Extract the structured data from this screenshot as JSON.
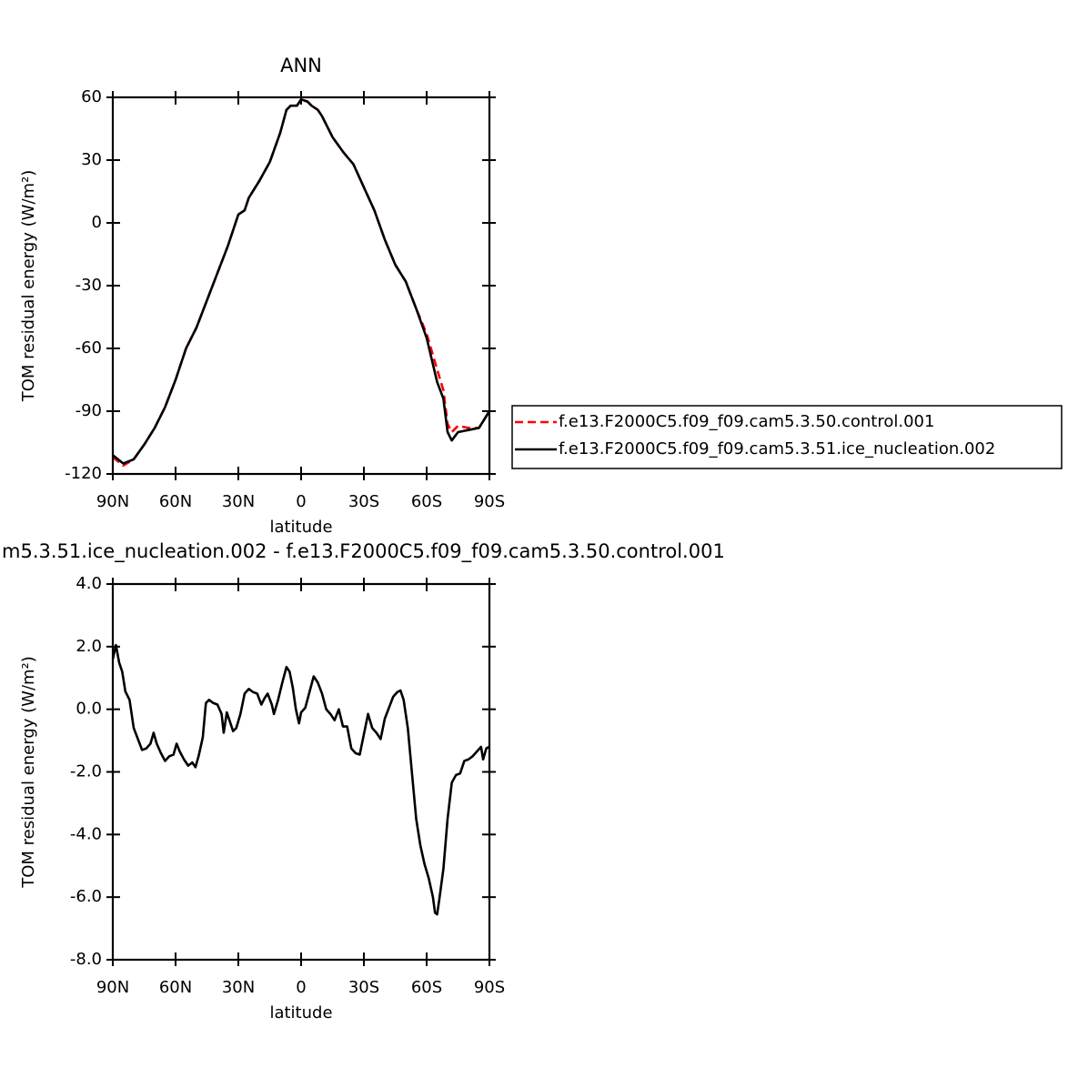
{
  "chart_data": [
    {
      "type": "line",
      "title": "ANN",
      "xlabel": "latitude",
      "ylabel": "TOM residual energy (W/m²)",
      "x": [
        90,
        85,
        80,
        75,
        70,
        65,
        60,
        55,
        50,
        45,
        40,
        35,
        30,
        27,
        25,
        20,
        15,
        10,
        7,
        5,
        2,
        0,
        -3,
        -5,
        -8,
        -10,
        -15,
        -20,
        -25,
        -30,
        -35,
        -40,
        -45,
        -50,
        -55,
        -60,
        -65,
        -68,
        -70,
        -72,
        -75,
        -80,
        -85,
        -90
      ],
      "series": [
        {
          "name": "f.e13.F2000C5.f09_f09.cam5.3.50.control.001",
          "color": "#ff0000",
          "linestyle": "dashed",
          "values": [
            -112,
            -116,
            -113,
            -106,
            -98,
            -88,
            -75,
            -60,
            -50,
            -37,
            -24,
            -11,
            4,
            6,
            12,
            20,
            29,
            43,
            54,
            56,
            56,
            59,
            58,
            56,
            54,
            51,
            41,
            34,
            28,
            17,
            6,
            -8,
            -20,
            -28,
            -41,
            -53,
            -70,
            -80,
            -96,
            -100,
            -97,
            -98,
            -98,
            -90
          ]
        },
        {
          "name": "f.e13.F2000C5.f09_f09.cam5.3.51.ice_nucleation.002",
          "color": "#000000",
          "linestyle": "solid",
          "values": [
            -111,
            -115,
            -113,
            -106,
            -98,
            -88,
            -75,
            -60,
            -50,
            -37,
            -24,
            -11,
            4,
            6,
            12,
            20,
            29,
            43,
            54,
            56,
            56,
            59,
            58,
            56,
            54,
            51,
            41,
            34,
            28,
            17,
            6,
            -8,
            -20,
            -28,
            -41,
            -55,
            -76,
            -84,
            -100,
            -104,
            -100,
            -99,
            -98,
            -90
          ]
        }
      ],
      "xlim": [
        90,
        -90
      ],
      "xticks": [
        {
          "value": 90,
          "label": "90N"
        },
        {
          "value": 60,
          "label": "60N"
        },
        {
          "value": 30,
          "label": "30N"
        },
        0,
        {
          "value": -30,
          "label": "30S"
        },
        {
          "value": -60,
          "label": "60S"
        },
        {
          "value": -90,
          "label": "90S"
        }
      ],
      "ylim": [
        -120,
        60
      ],
      "yticks": [
        -120,
        -90,
        -60,
        -30,
        0,
        30,
        60
      ],
      "legend": true
    },
    {
      "type": "line",
      "title": "m5.3.51.ice_nucleation.002 - f.e13.F2000C5.f09_f09.cam5.3.50.control.001",
      "xlabel": "latitude",
      "ylabel": "TOM residual energy (W/m²)",
      "x": [
        90,
        88.5,
        87,
        85.5,
        84,
        82,
        80,
        78,
        76,
        74,
        72,
        70.5,
        69,
        67,
        65,
        63,
        61,
        59.5,
        58,
        56,
        54,
        52,
        50.5,
        49,
        47,
        45.5,
        44,
        42,
        40,
        38,
        37,
        35.5,
        34,
        32.5,
        31,
        29,
        27,
        25,
        23,
        21,
        19,
        17.5,
        16,
        14,
        13,
        11,
        9,
        7,
        5.5,
        4,
        2.5,
        1,
        0,
        -2,
        -4,
        -6,
        -8,
        -10,
        -12,
        -14,
        -16,
        -18,
        -20,
        -22,
        -24,
        -26,
        -28,
        -30,
        -32,
        -34,
        -36,
        -38,
        -40,
        -42,
        -44,
        -46,
        -47.5,
        -49,
        -51,
        -53,
        -55,
        -57,
        -59,
        -61,
        -63,
        -64,
        -65,
        -66,
        -68,
        -70,
        -72,
        -74,
        -76,
        -78,
        -80,
        -82,
        -84,
        -86,
        -87,
        -88.5,
        -90
      ],
      "values": [
        1.6,
        2.05,
        1.5,
        1.2,
        0.57,
        0.3,
        -0.6,
        -0.95,
        -1.3,
        -1.25,
        -1.1,
        -0.75,
        -1.1,
        -1.4,
        -1.65,
        -1.5,
        -1.45,
        -1.1,
        -1.35,
        -1.6,
        -1.8,
        -1.7,
        -1.85,
        -1.5,
        -0.9,
        0.2,
        0.3,
        0.2,
        0.15,
        -0.15,
        -0.75,
        -0.1,
        -0.4,
        -0.7,
        -0.6,
        -0.15,
        0.5,
        0.65,
        0.55,
        0.5,
        0.15,
        0.35,
        0.5,
        0.15,
        -0.15,
        0.3,
        0.85,
        1.35,
        1.2,
        0.7,
        0,
        -0.45,
        -0.1,
        0.05,
        0.55,
        1.05,
        0.85,
        0.5,
        0,
        -0.15,
        -0.35,
        0,
        -0.55,
        -0.55,
        -1.25,
        -1.4,
        -1.45,
        -0.8,
        -0.15,
        -0.6,
        -0.75,
        -0.95,
        -0.3,
        0.05,
        0.4,
        0.55,
        0.6,
        0.3,
        -0.6,
        -2.05,
        -3.5,
        -4.35,
        -4.95,
        -5.4,
        -6.0,
        -6.5,
        -6.55,
        -6.1,
        -5.1,
        -3.5,
        -2.35,
        -2.1,
        -2.05,
        -1.65,
        -1.6,
        -1.5,
        -1.35,
        -1.2,
        -1.6,
        -1.25,
        -1.2
      ],
      "color": "#000000",
      "xlim": [
        90,
        -90
      ],
      "xticks": [
        {
          "value": 90,
          "label": "90N"
        },
        {
          "value": 60,
          "label": "60N"
        },
        {
          "value": 30,
          "label": "30N"
        },
        0,
        {
          "value": -30,
          "label": "30S"
        },
        {
          "value": -60,
          "label": "60S"
        },
        {
          "value": -90,
          "label": "90S"
        }
      ],
      "ylim": [
        -8,
        4
      ],
      "yticks": [
        {
          "value": -8,
          "label": "-8.0"
        },
        {
          "value": -6,
          "label": "-6.0"
        },
        {
          "value": -4,
          "label": "-4.0"
        },
        {
          "value": -2,
          "label": "-2.0"
        },
        {
          "value": 0,
          "label": "0.0"
        },
        {
          "value": 2,
          "label": "2.0"
        },
        {
          "value": 4,
          "label": "4.0"
        }
      ]
    }
  ]
}
